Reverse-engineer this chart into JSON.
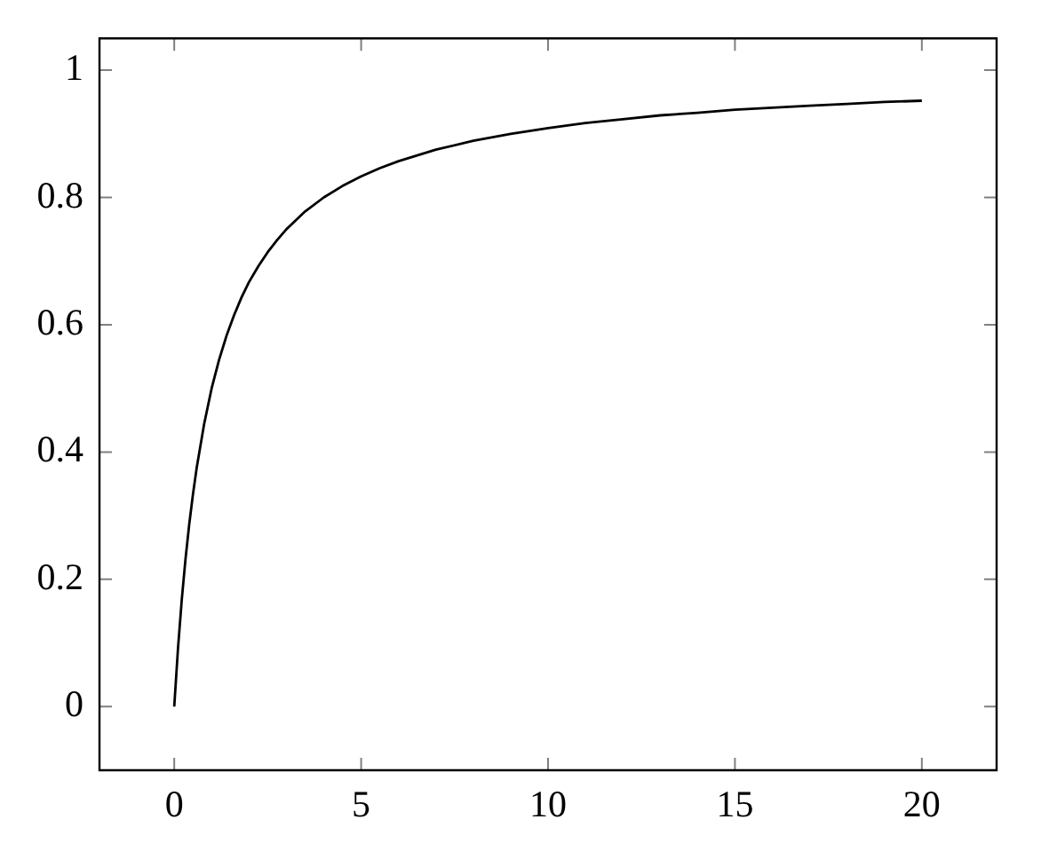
{
  "chart_data": {
    "type": "line",
    "x": [
      0,
      0.1,
      0.2,
      0.3,
      0.4,
      0.5,
      0.6,
      0.8,
      1,
      1.2,
      1.4,
      1.6,
      1.8,
      2,
      2.25,
      2.5,
      2.75,
      3,
      3.5,
      4,
      4.5,
      5,
      5.5,
      6,
      7,
      8,
      9,
      10,
      11,
      12,
      13,
      14,
      15,
      16,
      17,
      18,
      19,
      20
    ],
    "values": [
      0,
      0.091,
      0.167,
      0.231,
      0.286,
      0.333,
      0.375,
      0.444,
      0.5,
      0.545,
      0.583,
      0.615,
      0.643,
      0.667,
      0.692,
      0.714,
      0.733,
      0.75,
      0.778,
      0.8,
      0.818,
      0.833,
      0.846,
      0.857,
      0.875,
      0.889,
      0.9,
      0.909,
      0.917,
      0.923,
      0.929,
      0.933,
      0.938,
      0.941,
      0.944,
      0.947,
      0.95,
      0.952
    ],
    "color": "#000000",
    "xlim": [
      -2,
      22
    ],
    "ylim": [
      -0.1,
      1.05
    ],
    "xticks": [
      0,
      5,
      10,
      15,
      20
    ],
    "yticks": [
      0,
      0.2,
      0.4,
      0.6,
      0.8,
      1
    ],
    "marker": "none",
    "legend": false
  }
}
